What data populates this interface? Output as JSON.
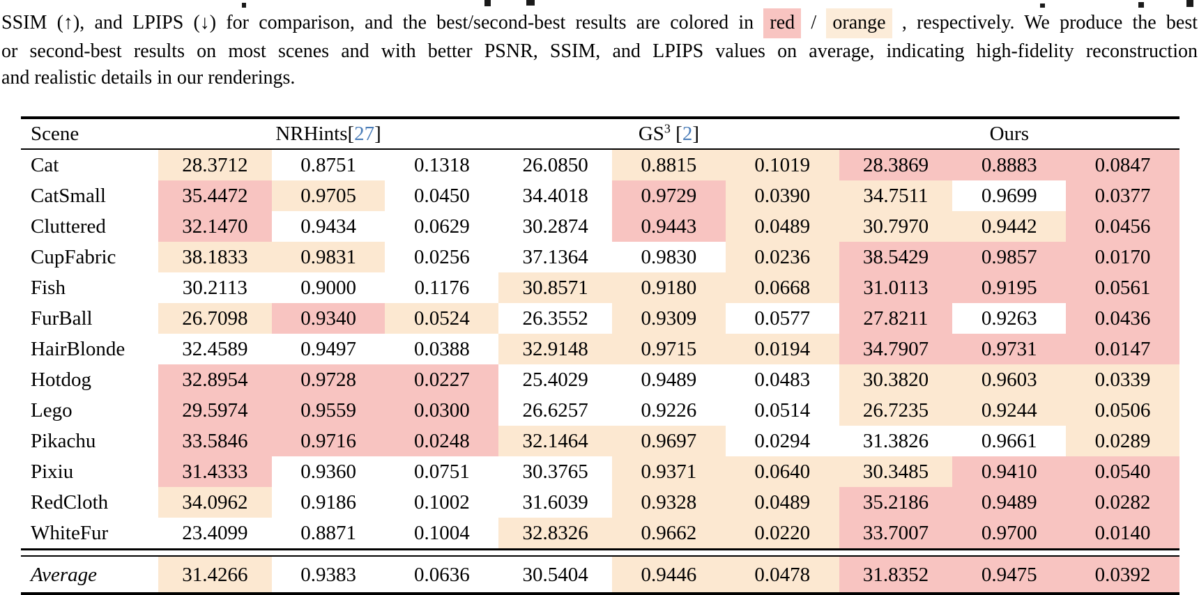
{
  "colors": {
    "best_red": "#f8c4c1",
    "second_orange": "#fce8d1",
    "caption_red_swatch": "#f8c4c1",
    "caption_orange_swatch": "#fcecd9",
    "citation_blue": "#4b7db8"
  },
  "caption": {
    "line2_before": "SSIM (↑), and LPIPS (↓) for comparison, and the best/second-best results are colored in",
    "red_label": "red",
    "slash": "/",
    "orange_label": "orange",
    "line2_after": ", respectively. We produce the best",
    "line3": "or second-best results on most scenes and with better PSNR, SSIM, and LPIPS values on average, indicating high-fidelity reconstruction",
    "line4": "and realistic details in our renderings."
  },
  "table": {
    "scene_header": "Scene",
    "methods": [
      {
        "name": "NRHints",
        "cite_open": "[",
        "cite_num": "27",
        "cite_close": "]"
      },
      {
        "name": "GS",
        "sup": "3",
        "cite_open": "[",
        "cite_num": "2",
        "cite_close": "]"
      },
      {
        "name": "Ours"
      }
    ],
    "rows": [
      {
        "scene": "Cat",
        "values": [
          "28.3712",
          "0.8751",
          "0.1318",
          "26.0850",
          "0.8815",
          "0.1019",
          "28.3869",
          "0.8883",
          "0.0847"
        ],
        "marks": [
          "s",
          "",
          "",
          "",
          "s",
          "s",
          "b",
          "b",
          "b"
        ]
      },
      {
        "scene": "CatSmall",
        "values": [
          "35.4472",
          "0.9705",
          "0.0450",
          "34.4018",
          "0.9729",
          "0.0390",
          "34.7511",
          "0.9699",
          "0.0377"
        ],
        "marks": [
          "b",
          "s",
          "",
          "",
          "b",
          "s",
          "s",
          "",
          "b"
        ]
      },
      {
        "scene": "Cluttered",
        "values": [
          "32.1470",
          "0.9434",
          "0.0629",
          "30.2874",
          "0.9443",
          "0.0489",
          "30.7970",
          "0.9442",
          "0.0456"
        ],
        "marks": [
          "b",
          "",
          "",
          "",
          "b",
          "s",
          "s",
          "s",
          "b"
        ]
      },
      {
        "scene": "CupFabric",
        "values": [
          "38.1833",
          "0.9831",
          "0.0256",
          "37.1364",
          "0.9830",
          "0.0236",
          "38.5429",
          "0.9857",
          "0.0170"
        ],
        "marks": [
          "s",
          "s",
          "",
          "",
          "",
          "s",
          "b",
          "b",
          "b"
        ]
      },
      {
        "scene": "Fish",
        "values": [
          "30.2113",
          "0.9000",
          "0.1176",
          "30.8571",
          "0.9180",
          "0.0668",
          "31.0113",
          "0.9195",
          "0.0561"
        ],
        "marks": [
          "",
          "",
          "",
          "s",
          "s",
          "s",
          "b",
          "b",
          "b"
        ]
      },
      {
        "scene": "FurBall",
        "values": [
          "26.7098",
          "0.9340",
          "0.0524",
          "26.3552",
          "0.9309",
          "0.0577",
          "27.8211",
          "0.9263",
          "0.0436"
        ],
        "marks": [
          "s",
          "b",
          "s",
          "",
          "s",
          "",
          "b",
          "",
          "b"
        ]
      },
      {
        "scene": "HairBlonde",
        "values": [
          "32.4589",
          "0.9497",
          "0.0388",
          "32.9148",
          "0.9715",
          "0.0194",
          "34.7907",
          "0.9731",
          "0.0147"
        ],
        "marks": [
          "",
          "",
          "",
          "s",
          "s",
          "s",
          "b",
          "b",
          "b"
        ]
      },
      {
        "scene": "Hotdog",
        "values": [
          "32.8954",
          "0.9728",
          "0.0227",
          "25.4029",
          "0.9489",
          "0.0483",
          "30.3820",
          "0.9603",
          "0.0339"
        ],
        "marks": [
          "b",
          "b",
          "b",
          "",
          "",
          "",
          "s",
          "s",
          "s"
        ]
      },
      {
        "scene": "Lego",
        "values": [
          "29.5974",
          "0.9559",
          "0.0300",
          "26.6257",
          "0.9226",
          "0.0514",
          "26.7235",
          "0.9244",
          "0.0506"
        ],
        "marks": [
          "b",
          "b",
          "b",
          "",
          "",
          "",
          "s",
          "s",
          "s"
        ]
      },
      {
        "scene": "Pikachu",
        "values": [
          "33.5846",
          "0.9716",
          "0.0248",
          "32.1464",
          "0.9697",
          "0.0294",
          "31.3826",
          "0.9661",
          "0.0289"
        ],
        "marks": [
          "b",
          "b",
          "b",
          "s",
          "s",
          "",
          "",
          "",
          "s"
        ]
      },
      {
        "scene": "Pixiu",
        "values": [
          "31.4333",
          "0.9360",
          "0.0751",
          "30.3765",
          "0.9371",
          "0.0640",
          "30.3485",
          "0.9410",
          "0.0540"
        ],
        "marks": [
          "b",
          "",
          "",
          "",
          "s",
          "s",
          "s",
          "b",
          "b"
        ]
      },
      {
        "scene": "RedCloth",
        "values": [
          "34.0962",
          "0.9186",
          "0.1002",
          "31.6039",
          "0.9328",
          "0.0489",
          "35.2186",
          "0.9489",
          "0.0282"
        ],
        "marks": [
          "s",
          "",
          "",
          "",
          "s",
          "s",
          "b",
          "b",
          "b"
        ]
      },
      {
        "scene": "WhiteFur",
        "values": [
          "23.4099",
          "0.8871",
          "0.1004",
          "32.8326",
          "0.9662",
          "0.0220",
          "33.7007",
          "0.9700",
          "0.0140"
        ],
        "marks": [
          "",
          "",
          "",
          "s",
          "s",
          "s",
          "b",
          "b",
          "b"
        ]
      }
    ],
    "average_row": {
      "scene": "Average",
      "italic": true,
      "values": [
        "31.4266",
        "0.9383",
        "0.0636",
        "30.5404",
        "0.9446",
        "0.0478",
        "31.8352",
        "0.9475",
        "0.0392"
      ],
      "marks": [
        "s",
        "",
        "",
        "",
        "s",
        "s",
        "b",
        "b",
        "b"
      ]
    }
  }
}
